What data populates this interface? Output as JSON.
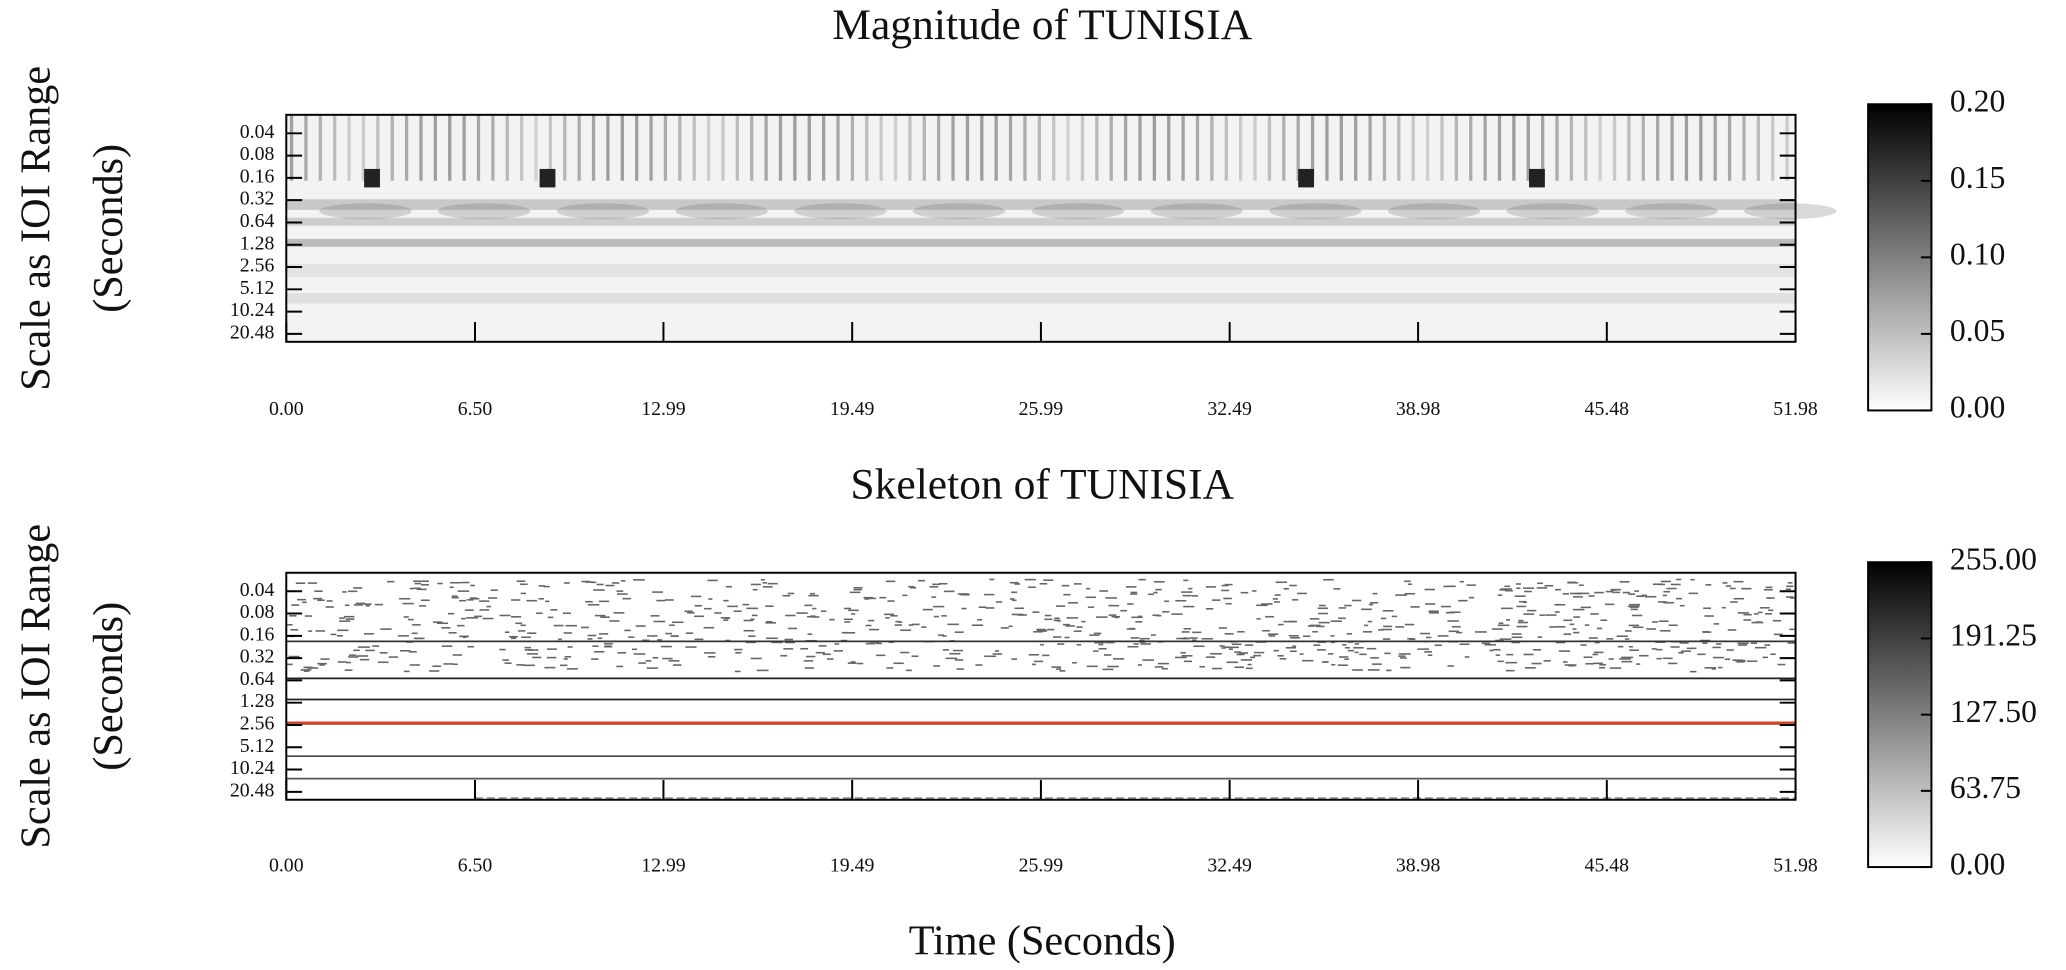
{
  "chart_data": [
    {
      "type": "heatmap",
      "title": "Magnitude of TUNISIA",
      "ylabel_lines": [
        "Scale as IOI Range",
        "(Seconds)"
      ],
      "xlim": [
        0,
        51.98
      ],
      "xticks": [
        {
          "value": 0,
          "label": "0.00"
        },
        {
          "value": 6.5,
          "label": "6.50"
        },
        12.99,
        19.49,
        25.99,
        32.49,
        38.98,
        45.48,
        51.98
      ],
      "ylog": true,
      "yinverted": true,
      "ylim": [
        0.0225,
        26.2
      ],
      "yticks": [
        0.04,
        0.08,
        0.16,
        0.32,
        0.64,
        1.28,
        2.56,
        5.12,
        10.24,
        20.48
      ],
      "colorbar": {
        "lim": [
          0,
          0.2
        ],
        "ticks": [
          {
            "value": 0,
            "label": "0.00"
          },
          0.05,
          {
            "value": 0.1,
            "label": "0.10"
          },
          0.15,
          {
            "value": 0.2,
            "label": "0.20"
          }
        ]
      }
    },
    {
      "type": "skeleton",
      "title": "Skeleton of TUNISIA",
      "ylabel_lines": [
        "Scale as IOI Range",
        "(Seconds)"
      ],
      "xlabel": "Time (Seconds)",
      "xlim": [
        0,
        51.98
      ],
      "xticks": [
        {
          "value": 0,
          "label": "0.00"
        },
        {
          "value": 6.5,
          "label": "6.50"
        },
        12.99,
        19.49,
        25.99,
        32.49,
        38.98,
        45.48,
        51.98
      ],
      "ylog": true,
      "yinverted": true,
      "ylim": [
        0.0225,
        26.2
      ],
      "yticks": [
        0.04,
        0.08,
        0.16,
        0.32,
        0.64,
        1.28,
        2.56,
        5.12,
        10.24,
        20.48
      ],
      "colorbar": {
        "lim": [
          0,
          255
        ],
        "ticks": [
          {
            "value": 0,
            "label": "0.00"
          },
          63.75,
          {
            "value": 127.5,
            "label": "127.50"
          },
          191.25,
          {
            "value": 255,
            "label": "255.00"
          }
        ]
      }
    }
  ]
}
